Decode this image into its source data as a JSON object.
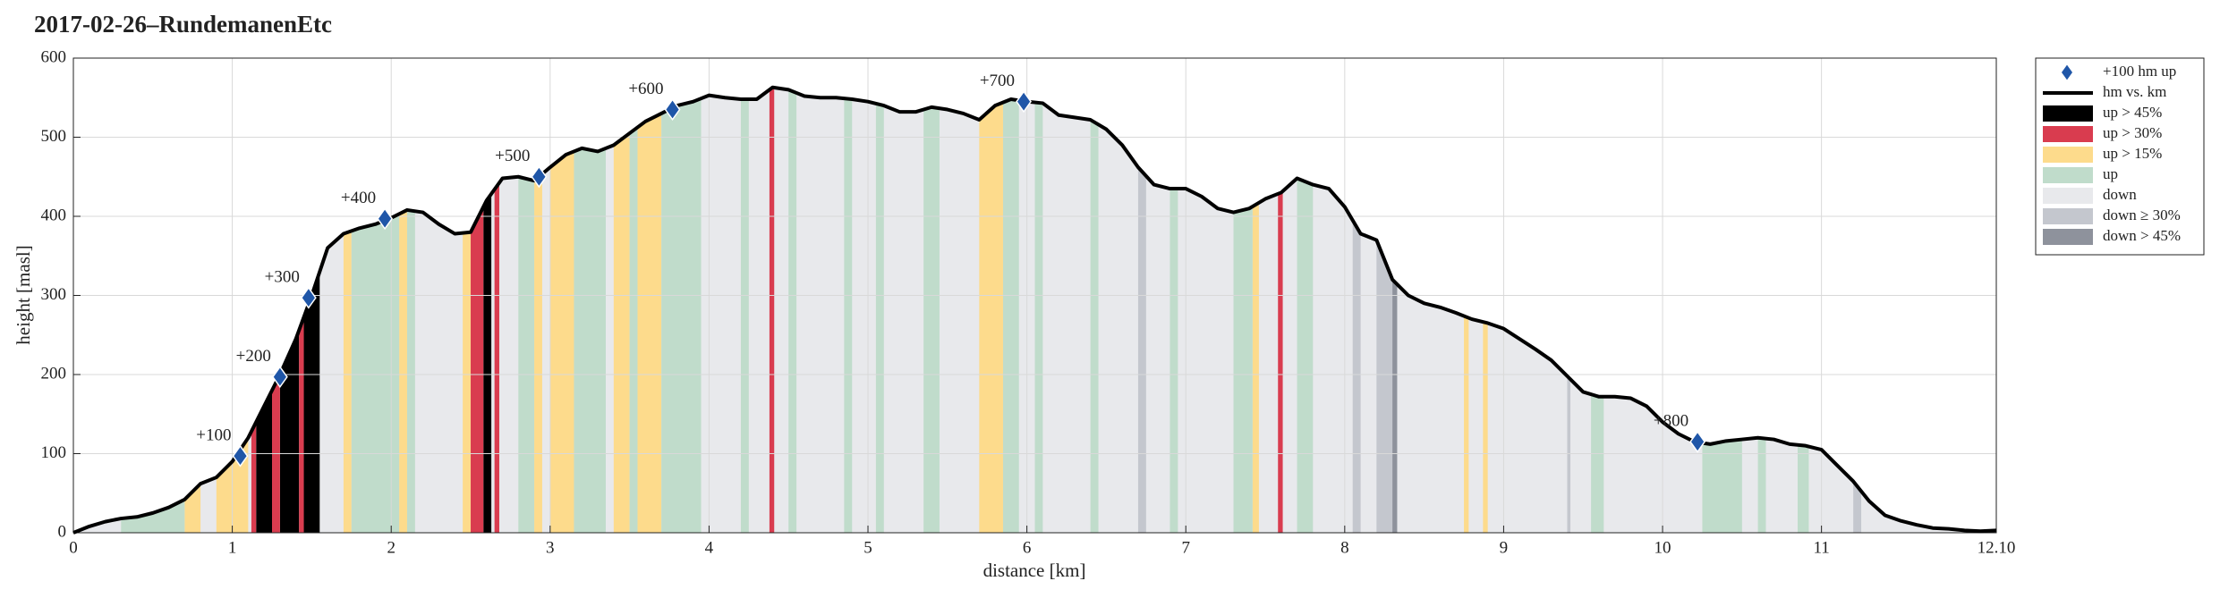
{
  "chart_data": {
    "type": "area",
    "title": "2017-02-26–RundemanenEtc",
    "x_label": "distance [km]",
    "y_label": "height [masl]",
    "xlim": [
      0,
      12.1
    ],
    "ylim": [
      0,
      600
    ],
    "xticks": [
      0,
      1,
      2,
      3,
      4,
      5,
      6,
      7,
      8,
      9,
      10,
      11,
      {
        "value": 12.1,
        "label": "12.10"
      }
    ],
    "yticks": [
      0,
      100,
      200,
      300,
      400,
      500,
      600
    ],
    "grid": true,
    "legend": "outside-right",
    "profile": {
      "name": "hm vs. km",
      "color": "#000000",
      "x": [
        0,
        0.1,
        0.2,
        0.3,
        0.4,
        0.5,
        0.6,
        0.7,
        0.8,
        0.9,
        1.0,
        1.1,
        1.2,
        1.3,
        1.4,
        1.5,
        1.6,
        1.7,
        1.8,
        1.9,
        2.0,
        2.1,
        2.2,
        2.3,
        2.4,
        2.5,
        2.6,
        2.7,
        2.8,
        2.9,
        3.0,
        3.1,
        3.2,
        3.3,
        3.4,
        3.5,
        3.6,
        3.7,
        3.8,
        3.9,
        4.0,
        4.1,
        4.2,
        4.3,
        4.4,
        4.5,
        4.6,
        4.7,
        4.8,
        4.9,
        5.0,
        5.1,
        5.2,
        5.3,
        5.4,
        5.5,
        5.6,
        5.7,
        5.8,
        5.9,
        6.0,
        6.1,
        6.2,
        6.3,
        6.4,
        6.5,
        6.6,
        6.7,
        6.8,
        6.9,
        7.0,
        7.1,
        7.2,
        7.3,
        7.4,
        7.5,
        7.6,
        7.7,
        7.8,
        7.9,
        8.0,
        8.1,
        8.2,
        8.3,
        8.4,
        8.5,
        8.6,
        8.7,
        8.8,
        8.9,
        9.0,
        9.1,
        9.2,
        9.3,
        9.4,
        9.5,
        9.6,
        9.7,
        9.8,
        9.9,
        10.0,
        10.1,
        10.2,
        10.3,
        10.4,
        10.5,
        10.6,
        10.7,
        10.8,
        10.9,
        11.0,
        11.1,
        11.2,
        11.3,
        11.4,
        11.5,
        11.6,
        11.7,
        11.8,
        11.9,
        12.0,
        12.1
      ],
      "y": [
        0,
        8,
        14,
        18,
        20,
        25,
        32,
        42,
        62,
        70,
        90,
        120,
        160,
        200,
        245,
        300,
        360,
        378,
        385,
        390,
        398,
        408,
        405,
        390,
        378,
        380,
        420,
        448,
        450,
        445,
        462,
        478,
        486,
        482,
        490,
        505,
        520,
        530,
        540,
        545,
        553,
        550,
        548,
        548,
        563,
        560,
        552,
        550,
        550,
        548,
        545,
        540,
        532,
        532,
        538,
        535,
        530,
        522,
        540,
        548,
        545,
        543,
        528,
        525,
        522,
        510,
        490,
        462,
        440,
        435,
        435,
        425,
        410,
        405,
        410,
        422,
        430,
        448,
        440,
        435,
        412,
        378,
        370,
        320,
        300,
        290,
        285,
        278,
        270,
        265,
        258,
        245,
        232,
        218,
        198,
        178,
        172,
        172,
        170,
        160,
        140,
        125,
        115,
        112,
        116,
        118,
        120,
        118,
        112,
        110,
        105,
        85,
        65,
        40,
        22,
        15,
        10,
        6,
        5,
        3,
        2,
        3
      ]
    },
    "markers": {
      "name": "+100 hm up",
      "color": "#1f56a8",
      "x": [
        1.05,
        1.3,
        1.48,
        1.96,
        2.93,
        3.77,
        5.98,
        10.22
      ],
      "y": [
        97,
        197,
        297,
        397,
        450,
        535,
        545,
        115
      ],
      "labels": [
        "+100",
        "+200",
        "+300",
        "+400",
        "+500",
        "+600",
        "+700",
        "+800"
      ]
    },
    "series": [
      {
        "name": "up > 45%",
        "color": "#000000",
        "intervals": [
          [
            1.15,
            1.25
          ],
          [
            1.3,
            1.42
          ],
          [
            1.45,
            1.55
          ],
          [
            2.58,
            2.63
          ]
        ]
      },
      {
        "name": "up > 30%",
        "color": "#d93c4f",
        "intervals": [
          [
            1.12,
            1.15
          ],
          [
            1.25,
            1.3
          ],
          [
            1.42,
            1.45
          ],
          [
            2.5,
            2.58
          ],
          [
            2.65,
            2.68
          ],
          [
            4.38,
            4.41
          ],
          [
            7.58,
            7.61
          ]
        ]
      },
      {
        "name": "up > 15%",
        "color": "#fddb8c",
        "intervals": [
          [
            0.7,
            0.8
          ],
          [
            0.9,
            1.1
          ],
          [
            1.7,
            1.75
          ],
          [
            2.05,
            2.1
          ],
          [
            2.45,
            2.5
          ],
          [
            2.9,
            2.95
          ],
          [
            3.0,
            3.15
          ],
          [
            3.4,
            3.5
          ],
          [
            3.55,
            3.7
          ],
          [
            5.7,
            5.85
          ],
          [
            7.42,
            7.46
          ],
          [
            8.75,
            8.78
          ],
          [
            8.87,
            8.9
          ]
        ]
      },
      {
        "name": "up",
        "color": "#c0dccb",
        "intervals": [
          [
            0.3,
            0.7
          ],
          [
            1.75,
            2.05
          ],
          [
            2.1,
            2.15
          ],
          [
            2.8,
            2.9
          ],
          [
            3.15,
            3.35
          ],
          [
            3.5,
            3.55
          ],
          [
            3.7,
            3.95
          ],
          [
            4.2,
            4.25
          ],
          [
            4.5,
            4.55
          ],
          [
            4.85,
            4.9
          ],
          [
            5.05,
            5.1
          ],
          [
            5.35,
            5.45
          ],
          [
            5.85,
            5.95
          ],
          [
            6.05,
            6.1
          ],
          [
            6.4,
            6.45
          ],
          [
            6.9,
            6.95
          ],
          [
            7.3,
            7.42
          ],
          [
            7.7,
            7.8
          ],
          [
            9.55,
            9.63
          ],
          [
            10.25,
            10.5
          ],
          [
            10.6,
            10.65
          ],
          [
            10.85,
            10.92
          ]
        ]
      },
      {
        "name": "down",
        "color": "#e8e9ec",
        "intervals": [
          [
            0,
            12.1
          ]
        ]
      },
      {
        "name": "down ≥ 30%",
        "color": "#c4c7ce",
        "intervals": [
          [
            6.7,
            6.75
          ],
          [
            8.05,
            8.1
          ],
          [
            8.2,
            8.3
          ],
          [
            9.4,
            9.42
          ],
          [
            11.2,
            11.25
          ]
        ]
      },
      {
        "name": "down > 45%",
        "color": "#8e929c",
        "intervals": [
          [
            8.3,
            8.33
          ]
        ]
      }
    ]
  }
}
